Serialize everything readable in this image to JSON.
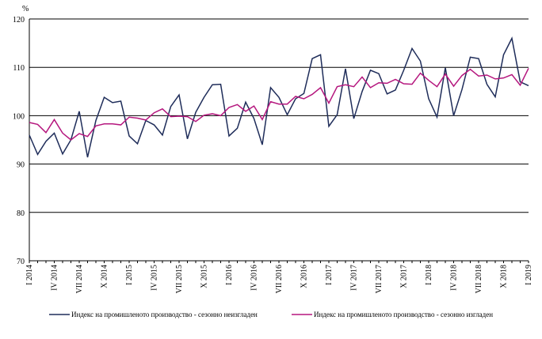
{
  "chart_data": {
    "type": "line",
    "y_unit": "%",
    "categories": [
      "I 2014",
      null,
      null,
      "IV 2014",
      null,
      null,
      "VII 2014",
      null,
      null,
      "X 2014",
      null,
      null,
      "I 2015",
      null,
      null,
      "IV 2015",
      null,
      null,
      "VII 2015",
      null,
      null,
      "X 2015",
      null,
      null,
      "I 2016",
      null,
      null,
      "IV 2016",
      null,
      null,
      "VII 2016",
      null,
      null,
      "X 2016",
      null,
      null,
      "I 2017",
      null,
      null,
      "IV 2017",
      null,
      null,
      "VII 2017",
      null,
      null,
      "X 2017",
      null,
      null,
      "I 2018",
      null,
      null,
      "IV 2018",
      null,
      null,
      "VII 2018",
      null,
      null,
      "X 2018",
      null,
      null,
      "I 2019"
    ],
    "series": [
      {
        "name": "Индекс на промишленото производство - сезонно неизгладен",
        "color": "#1f2d5a",
        "values": [
          96,
          92,
          94.7,
          96.4,
          92.1,
          95,
          100.9,
          91.4,
          99,
          103.8,
          102.7,
          103,
          95.8,
          94.2,
          99,
          98.1,
          96,
          101.9,
          104.3,
          95.2,
          100.7,
          103.8,
          106.4,
          106.5,
          95.8,
          97.4,
          102.8,
          99.4,
          94,
          105.8,
          103.8,
          100.2,
          103.5,
          104.6,
          111.8,
          112.6,
          97.8,
          100.2,
          109.7,
          99.4,
          105,
          109.4,
          108.7,
          104.5,
          105.3,
          109.4,
          113.9,
          111.3,
          103.5,
          99.7,
          109.9,
          100,
          105.4,
          112.1,
          111.8,
          106.5,
          103.9,
          112.6,
          116,
          107,
          106.2
        ]
      },
      {
        "name": "Индекс на промишленото производство - сезонно изгладен",
        "color": "#b5177e",
        "values": [
          98.6,
          98.2,
          96.5,
          99.2,
          96.4,
          95,
          96.3,
          95.7,
          97.9,
          98.3,
          98.3,
          98.1,
          99.7,
          99.5,
          99.1,
          100.6,
          101.4,
          99.8,
          99.9,
          99.8,
          98.8,
          100.1,
          100.4,
          100,
          101.7,
          102.3,
          100.9,
          102,
          99.2,
          102.9,
          102.4,
          102.4,
          104,
          103.5,
          104.4,
          105.8,
          102.6,
          106,
          106.4,
          106,
          108,
          105.8,
          106.8,
          106.7,
          107.5,
          106.6,
          106.5,
          108.8,
          107.3,
          106,
          108.6,
          106.1,
          108.3,
          109.6,
          108.2,
          108.4,
          107.6,
          107.8,
          108.5,
          106.3,
          109.8
        ]
      }
    ],
    "ylim": [
      70,
      120
    ],
    "yticks": [
      70,
      80,
      90,
      100,
      110,
      120
    ],
    "grid": true,
    "legend": "bottom"
  }
}
